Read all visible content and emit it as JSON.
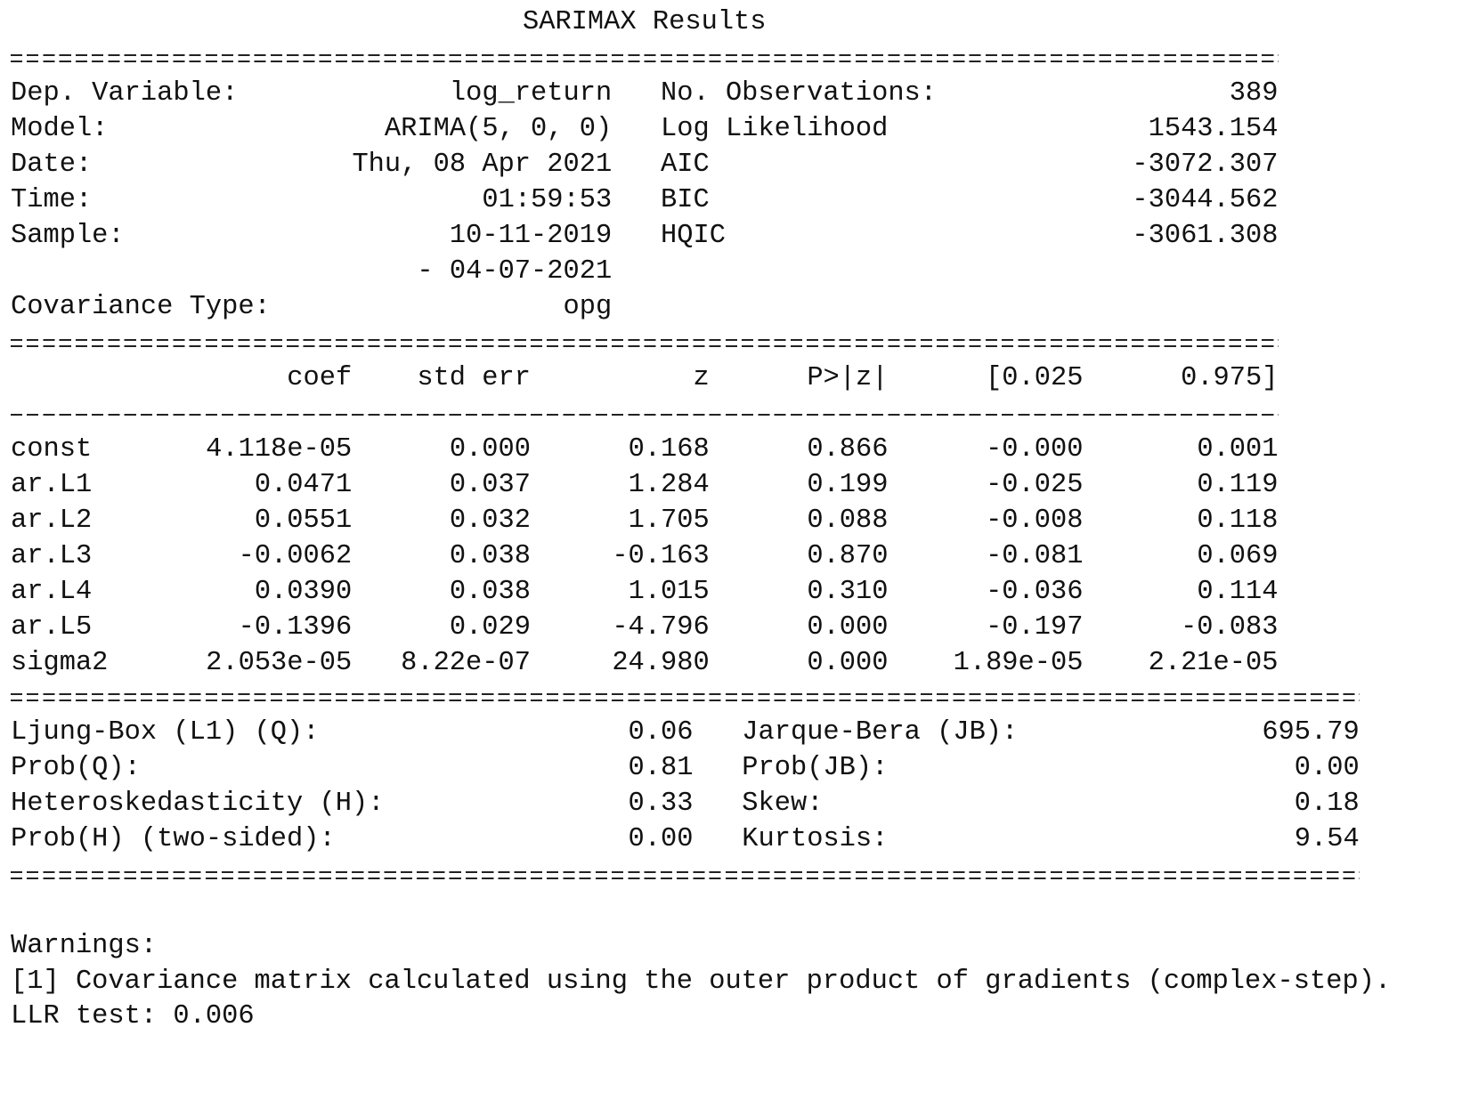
{
  "title": "SARIMAX Results",
  "summary": [
    {
      "label": "Dep. Variable:",
      "value": "log_return",
      "label2": "No. Observations:",
      "value2": "389"
    },
    {
      "label": "Model:",
      "value": "ARIMA(5, 0, 0)",
      "label2": "Log Likelihood",
      "value2": "1543.154"
    },
    {
      "label": "Date:",
      "value": "Thu, 08 Apr 2021",
      "label2": "AIC",
      "value2": "-3072.307"
    },
    {
      "label": "Time:",
      "value": "01:59:53",
      "label2": "BIC",
      "value2": "-3044.562"
    },
    {
      "label": "Sample:",
      "value": "10-11-2019",
      "label2": "HQIC",
      "value2": "-3061.308"
    },
    {
      "value": "- 04-07-2021"
    },
    {
      "label": "Covariance Type:",
      "value": "opg"
    }
  ],
  "coef_table": {
    "header": [
      "coef",
      "std err",
      "z",
      "P>|z|",
      "[0.025",
      "0.975]"
    ],
    "rows": [
      [
        "const",
        "4.118e-05",
        "0.000",
        "0.168",
        "0.866",
        "-0.000",
        "0.001"
      ],
      [
        "ar.L1",
        "0.0471",
        "0.037",
        "1.284",
        "0.199",
        "-0.025",
        "0.119"
      ],
      [
        "ar.L2",
        "0.0551",
        "0.032",
        "1.705",
        "0.088",
        "-0.008",
        "0.118"
      ],
      [
        "ar.L3",
        "-0.0062",
        "0.038",
        "-0.163",
        "0.870",
        "-0.081",
        "0.069"
      ],
      [
        "ar.L4",
        "0.0390",
        "0.038",
        "1.015",
        "0.310",
        "-0.036",
        "0.114"
      ],
      [
        "ar.L5",
        "-0.1396",
        "0.029",
        "-4.796",
        "0.000",
        "-0.197",
        "-0.083"
      ],
      [
        "sigma2",
        "2.053e-05",
        "8.22e-07",
        "24.980",
        "0.000",
        "1.89e-05",
        "2.21e-05"
      ]
    ]
  },
  "diagnostics": [
    [
      "Ljung-Box (L1) (Q):",
      "0.06",
      "Jarque-Bera (JB):",
      "695.79"
    ],
    [
      "Prob(Q):",
      "0.81",
      "Prob(JB):",
      "0.00"
    ],
    [
      "Heteroskedasticity (H):",
      "0.33",
      "Skew:",
      "0.18"
    ],
    [
      "Prob(H) (two-sided):",
      "0.00",
      "Kurtosis:",
      "9.54"
    ]
  ],
  "warnings": {
    "heading": "Warnings:",
    "items": [
      "[1] Covariance matrix calculated using the outer product of gradients (complex-step)."
    ]
  },
  "llr_test": "LLR test: 0.006"
}
